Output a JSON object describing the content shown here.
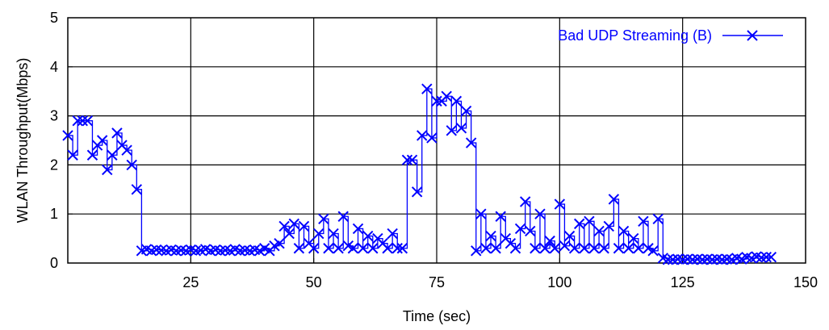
{
  "chart_data": {
    "type": "line",
    "title": "",
    "xlabel": "Time (sec)",
    "ylabel": "WLAN Throughput(Mbps)",
    "xlim": [
      0,
      150
    ],
    "ylim": [
      0,
      5
    ],
    "xticks": [
      25,
      50,
      75,
      100,
      125,
      150
    ],
    "yticks": [
      0,
      1,
      2,
      3,
      4,
      5
    ],
    "grid": true,
    "legend_position": "top-right",
    "series": [
      {
        "name": "Bad UDP Streaming (B)",
        "color": "#0000ff",
        "marker": "x",
        "x": [
          0,
          1,
          2,
          3,
          4,
          5,
          6,
          7,
          8,
          9,
          10,
          11,
          12,
          13,
          14,
          15,
          16,
          17,
          18,
          19,
          20,
          21,
          22,
          23,
          24,
          25,
          26,
          27,
          28,
          29,
          30,
          31,
          32,
          33,
          34,
          35,
          36,
          37,
          38,
          39,
          40,
          41,
          42,
          43,
          44,
          45,
          46,
          47,
          48,
          49,
          50,
          51,
          52,
          53,
          54,
          55,
          56,
          57,
          58,
          59,
          60,
          61,
          62,
          63,
          64,
          65,
          66,
          67,
          68,
          69,
          70,
          71,
          72,
          73,
          74,
          75,
          76,
          77,
          78,
          79,
          80,
          81,
          82,
          83,
          84,
          85,
          86,
          87,
          88,
          89,
          90,
          91,
          92,
          93,
          94,
          95,
          96,
          97,
          98,
          99,
          100,
          101,
          102,
          103,
          104,
          105,
          106,
          107,
          108,
          109,
          110,
          111,
          112,
          113,
          114,
          115,
          116,
          117,
          118,
          119,
          120,
          121,
          122,
          123,
          124,
          125,
          126,
          127,
          128,
          129,
          130,
          131,
          132,
          133,
          134,
          135,
          136,
          137,
          138,
          139,
          140,
          141,
          142,
          143
        ],
        "y": [
          2.6,
          2.2,
          2.9,
          2.9,
          2.9,
          2.2,
          2.4,
          2.5,
          1.9,
          2.2,
          2.65,
          2.4,
          2.3,
          2.0,
          1.5,
          0.25,
          0.28,
          0.25,
          0.27,
          0.26,
          0.25,
          0.27,
          0.25,
          0.26,
          0.25,
          0.27,
          0.25,
          0.26,
          0.28,
          0.25,
          0.27,
          0.25,
          0.26,
          0.25,
          0.28,
          0.25,
          0.26,
          0.25,
          0.27,
          0.25,
          0.3,
          0.25,
          0.35,
          0.4,
          0.75,
          0.6,
          0.8,
          0.3,
          0.75,
          0.4,
          0.3,
          0.6,
          0.9,
          0.3,
          0.6,
          0.3,
          0.95,
          0.35,
          0.3,
          0.7,
          0.3,
          0.55,
          0.3,
          0.5,
          0.4,
          0.3,
          0.6,
          0.3,
          0.3,
          2.1,
          2.1,
          1.45,
          2.6,
          3.55,
          2.55,
          3.3,
          3.3,
          3.4,
          2.7,
          3.3,
          2.75,
          3.1,
          2.45,
          0.25,
          1.0,
          0.3,
          0.55,
          0.3,
          0.95,
          0.5,
          0.4,
          0.3,
          0.7,
          1.25,
          0.65,
          0.3,
          1.0,
          0.3,
          0.45,
          0.3,
          1.2,
          0.35,
          0.55,
          0.3,
          0.8,
          0.3,
          0.85,
          0.3,
          0.65,
          0.3,
          0.75,
          1.3,
          0.3,
          0.65,
          0.3,
          0.5,
          0.3,
          0.85,
          0.3,
          0.25,
          0.9,
          0.1,
          0.07,
          0.07,
          0.08,
          0.07,
          0.08,
          0.07,
          0.08,
          0.07,
          0.08,
          0.07,
          0.08,
          0.07,
          0.08,
          0.07,
          0.1,
          0.08,
          0.12,
          0.1,
          0.13,
          0.11,
          0.12,
          0.12
        ]
      }
    ]
  }
}
